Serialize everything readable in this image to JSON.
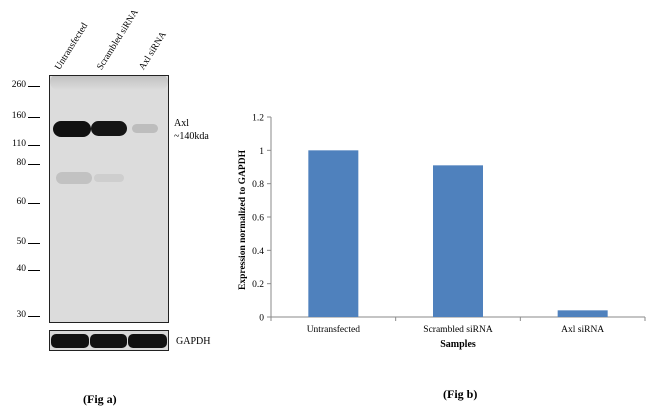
{
  "fig_a": {
    "lanes": [
      "Untransfected",
      "Scrambled siRNA",
      "Axl  siRNA"
    ],
    "mw_markers": [
      "260",
      "160",
      "110",
      "80",
      "60",
      "50",
      "40",
      "30"
    ],
    "target_label": "Axl",
    "target_size": "~140kda",
    "loading_control": "GAPDH",
    "caption": "(Fig a)"
  },
  "fig_b": {
    "caption": "(Fig b)"
  },
  "chart_data": {
    "type": "bar",
    "categories": [
      "Untransfected",
      "Scrambled siRNA",
      "Axl siRNA"
    ],
    "values": [
      1.0,
      0.91,
      0.04
    ],
    "xlabel": "Samples",
    "ylabel": "Expression normalized to GAPDH",
    "ylim": [
      0,
      1.2
    ],
    "yticks": [
      "0",
      "0.2",
      "0.4",
      "0.6",
      "0.8",
      "1",
      "1.2"
    ],
    "bar_color": "#4f81bd",
    "grid": false
  }
}
